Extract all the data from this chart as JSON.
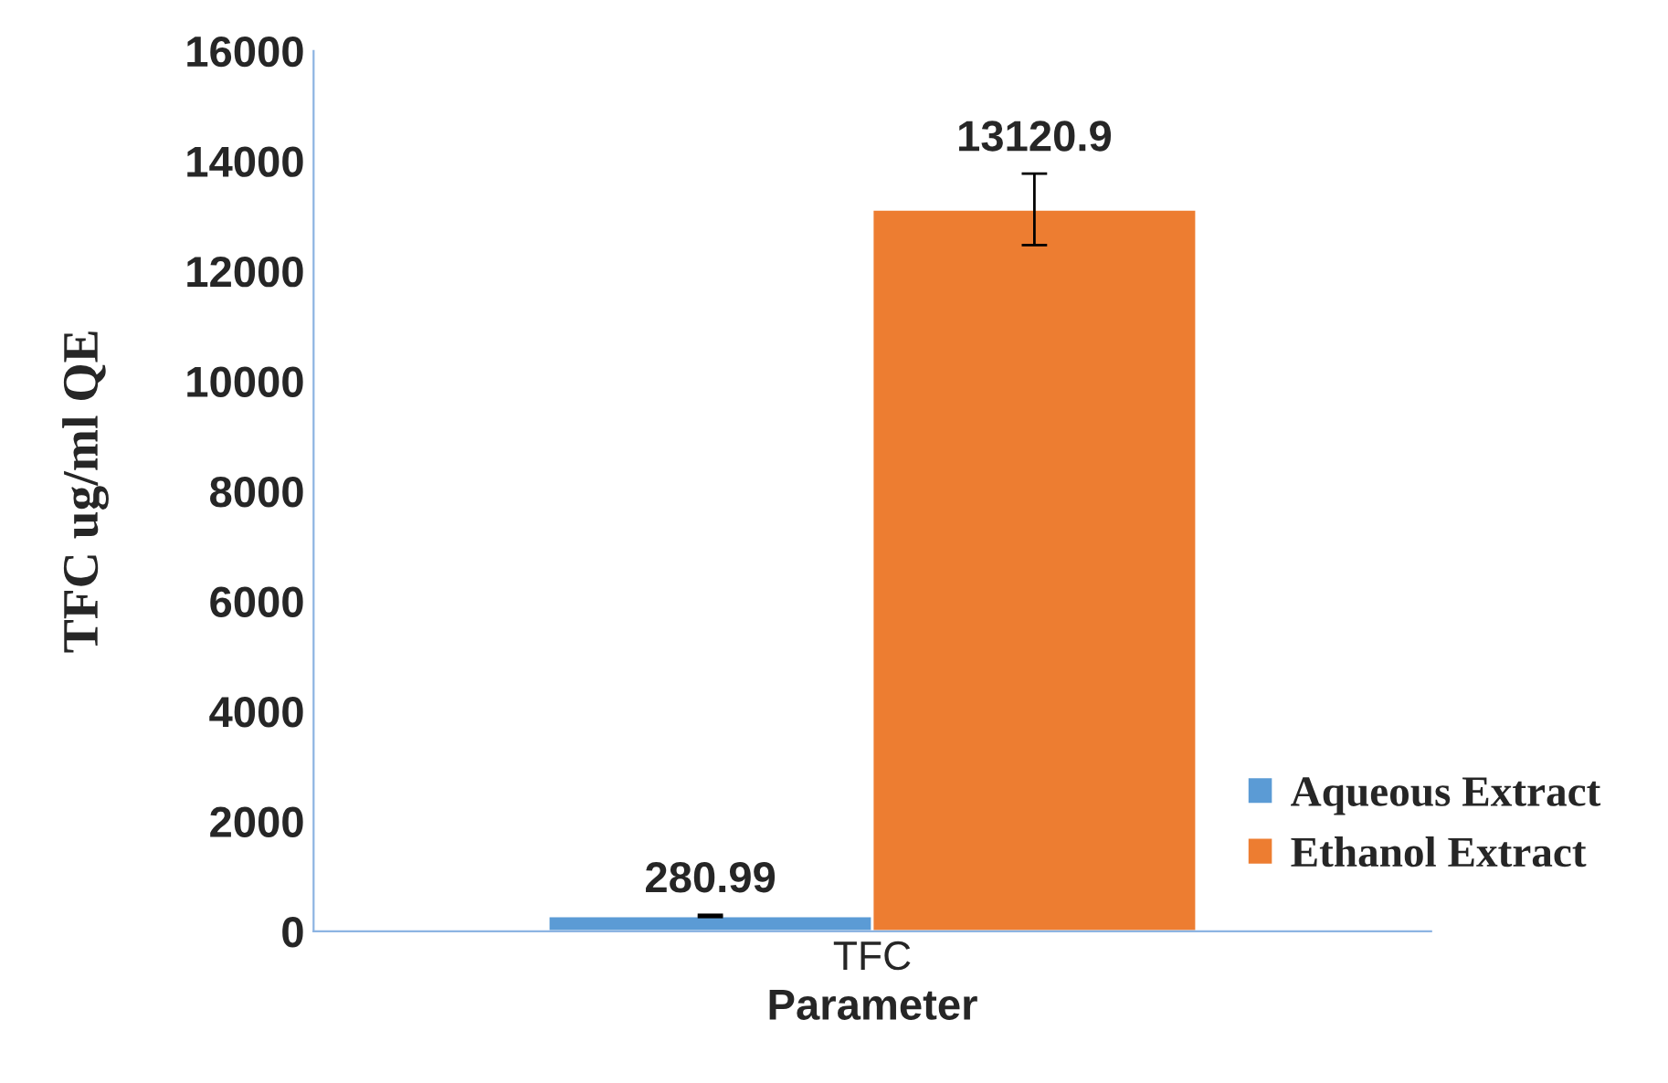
{
  "chart_data": {
    "type": "bar",
    "ylabel": "TFC ug/ml QE",
    "xlabel": "Parameter",
    "categories": [
      "TFC"
    ],
    "series": [
      {
        "name": "Aqueous Extract",
        "color": "#5b9bd5",
        "values": [
          280.99
        ],
        "errors": [
          20
        ]
      },
      {
        "name": "Ethanol Extract",
        "color": "#ed7d31",
        "values": [
          13120.9
        ],
        "errors": [
          650
        ]
      }
    ],
    "data_labels": true,
    "ylim": [
      0,
      16000
    ],
    "yticks": [
      0,
      2000,
      4000,
      6000,
      8000,
      10000,
      12000,
      14000,
      16000
    ],
    "grid": false,
    "legend": "right"
  }
}
